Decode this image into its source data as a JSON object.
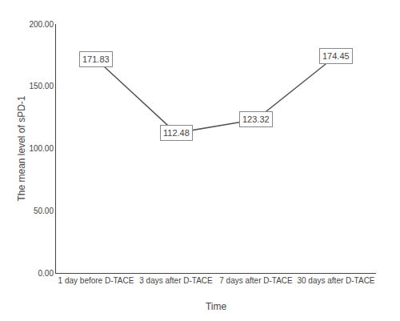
{
  "chart_data": {
    "type": "line",
    "x_label": "Time",
    "y_label": "The mean level of sPD-1",
    "categories": [
      "1 day before D-TACE",
      "3 days after D-TACE",
      "7 days after D-TACE",
      "30 days after D-TACE"
    ],
    "values": [
      171.83,
      112.48,
      123.32,
      174.45
    ],
    "color": "#555555",
    "line_style": "solid",
    "ylim": [
      0,
      200
    ],
    "yticks": [
      {
        "value": 0,
        "label": "0.00"
      },
      {
        "value": 50,
        "label": "50.00"
      },
      {
        "value": 100,
        "label": "100.00"
      },
      {
        "value": 150,
        "label": "150.00"
      },
      {
        "value": 200,
        "label": "200.00"
      }
    ],
    "data_labels": true,
    "grid": false
  }
}
